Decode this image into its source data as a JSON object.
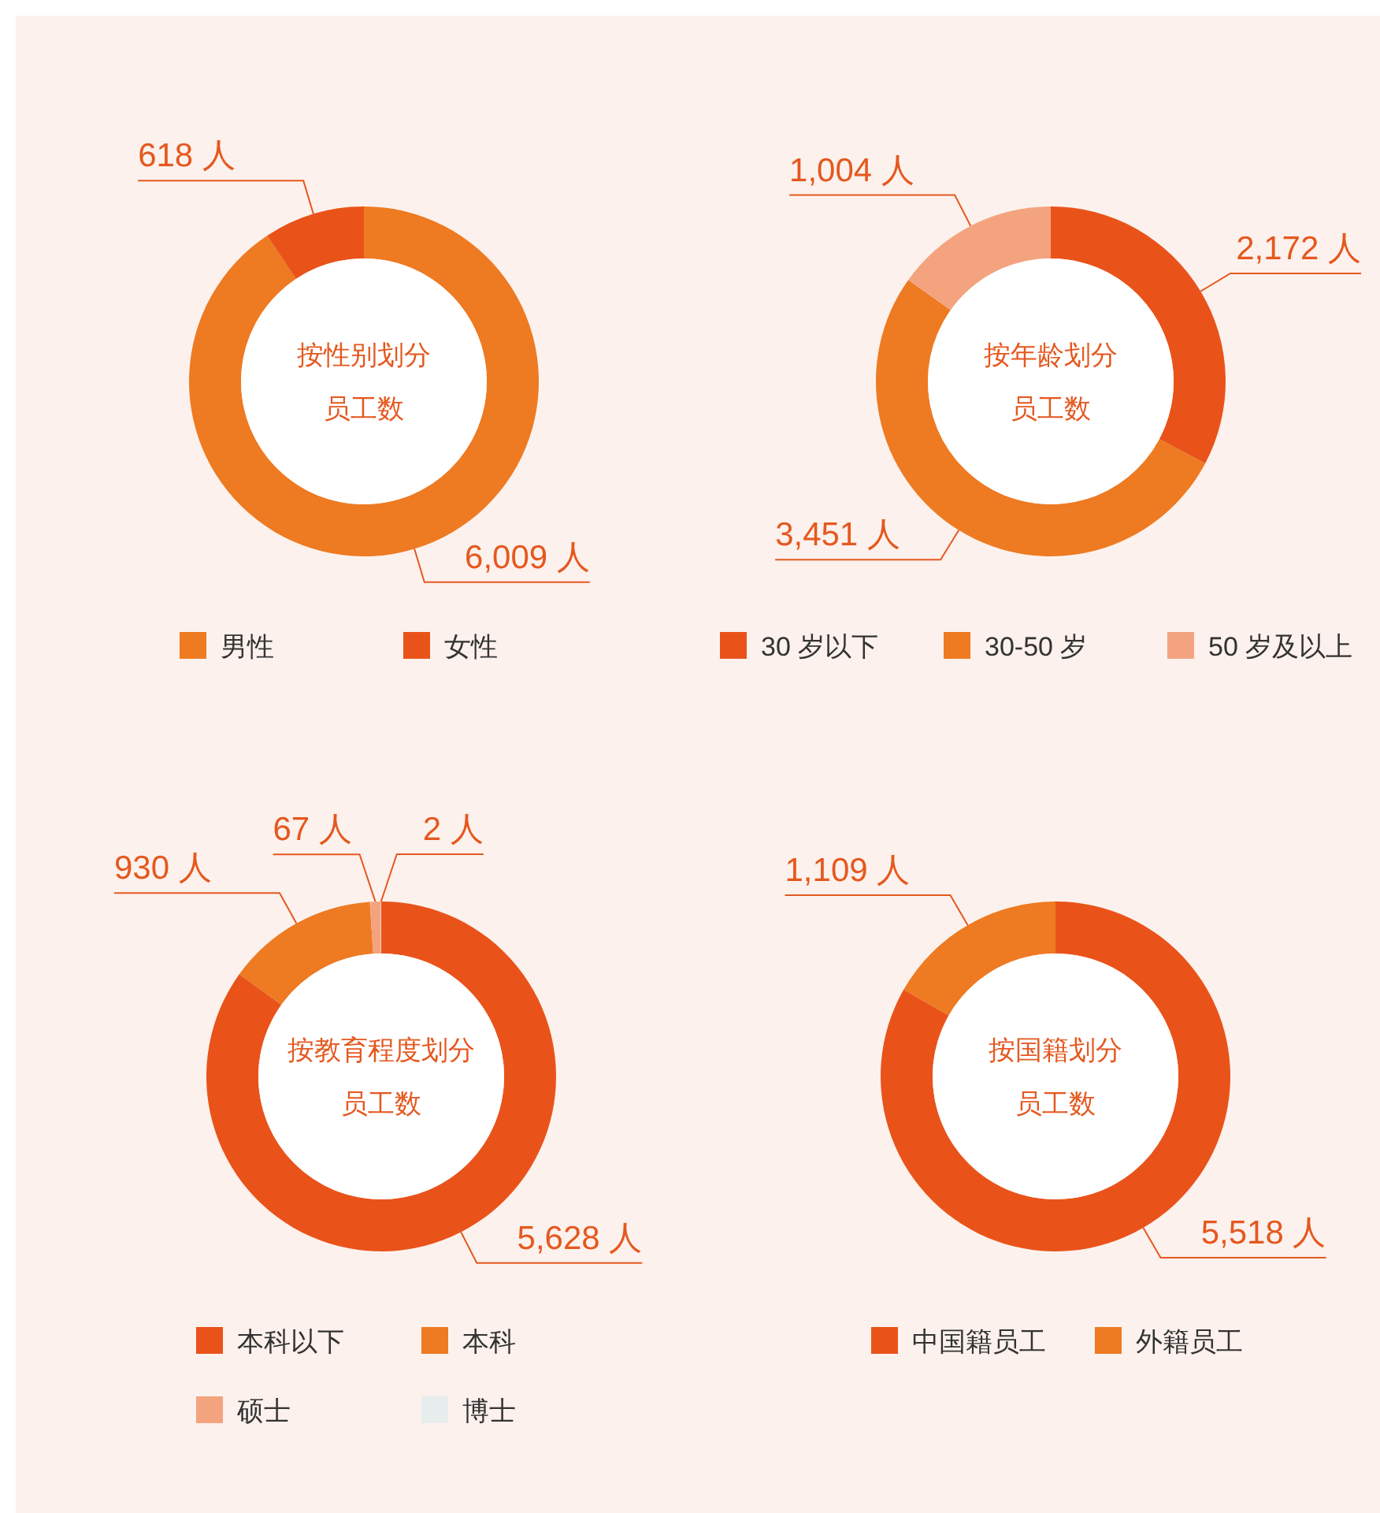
{
  "chart_data": [
    {
      "type": "donut",
      "title": "按性别划分",
      "subtitle": "员工数",
      "categories": [
        "男性",
        "女性"
      ],
      "values": [
        6009,
        618
      ],
      "value_labels": [
        "6,009 人",
        "618 人"
      ],
      "colors": [
        "#ee7a22",
        "#e9531a"
      ],
      "legend": "bottom"
    },
    {
      "type": "donut",
      "title": "按年龄划分",
      "subtitle": "员工数",
      "categories": [
        "30 岁以下",
        "30-50 岁",
        "50 岁及以上"
      ],
      "values": [
        2172,
        3451,
        1004
      ],
      "value_labels": [
        "2,172 人",
        "3,451 人",
        "1,004 人"
      ],
      "colors": [
        "#e9531a",
        "#ee7a22",
        "#f3a47f"
      ],
      "legend": "bottom"
    },
    {
      "type": "donut",
      "title": "按教育程度划分",
      "subtitle": "员工数",
      "categories": [
        "本科以下",
        "本科",
        "硕士",
        "博士"
      ],
      "values": [
        5628,
        930,
        67,
        2
      ],
      "value_labels": [
        "5,628 人",
        "930 人",
        "67 人",
        "2 人"
      ],
      "colors": [
        "#e9531a",
        "#ee7a22",
        "#f3a47f",
        "#e8edee"
      ],
      "legend": "bottom"
    },
    {
      "type": "donut",
      "title": "按国籍划分",
      "subtitle": "员工数",
      "categories": [
        "中国籍员工",
        "外籍员工"
      ],
      "values": [
        5518,
        1109
      ],
      "value_labels": [
        "5,518 人",
        "1,109 人"
      ],
      "colors": [
        "#e9531a",
        "#ee7a22"
      ],
      "legend": "bottom"
    }
  ]
}
